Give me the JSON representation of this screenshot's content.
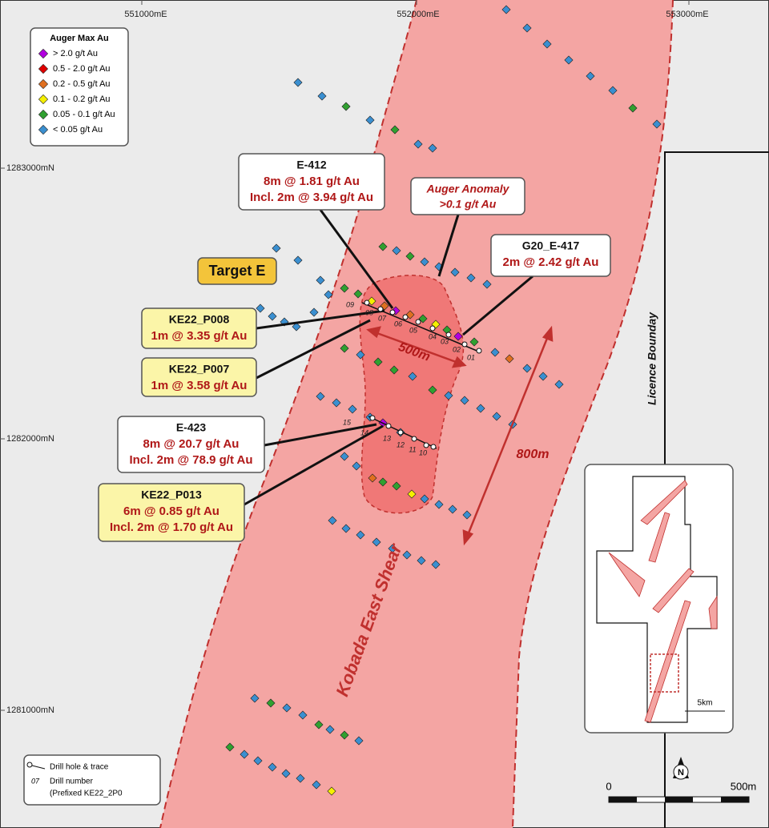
{
  "grid": {
    "eastings": [
      "551000mE",
      "552000mE",
      "553000mE"
    ],
    "northings": [
      "1283000mN",
      "1282000mN",
      "1281000mN"
    ]
  },
  "legend": {
    "title": "Auger Max Au",
    "items": [
      "> 2.0 g/t Au",
      "0.5 - 2.0 g/t Au",
      "0.2 - 0.5 g/t Au",
      "0.1 - 0.2 g/t Au",
      "0.05 - 0.1 g/t Au",
      "< 0.05 g/t Au"
    ]
  },
  "callouts": [
    {
      "title": "E-412",
      "lines": [
        "8m @ 1.81 g/t Au",
        "Incl. 2m @ 3.94 g/t Au"
      ]
    },
    {
      "title": "G20_E-417",
      "lines": [
        "2m @ 2.42 g/t Au"
      ]
    },
    {
      "title": "KE22_P008",
      "lines": [
        "1m @ 3.35 g/t Au"
      ]
    },
    {
      "title": "KE22_P007",
      "lines": [
        "1m @ 3.58 g/t Au"
      ]
    },
    {
      "title": "E-423",
      "lines": [
        "8m @ 20.7 g/t Au",
        "Incl. 2m @ 78.9 g/t Au"
      ]
    },
    {
      "title": "KE22_P013",
      "lines": [
        "6m @ 0.85 g/t Au",
        "Incl. 2m @ 1.70 g/t Au"
      ]
    }
  ],
  "target_label": "Target E",
  "anomaly": {
    "title": "Auger Anomaly",
    "subtitle": ">0.1 g/t Au"
  },
  "dimensions": [
    "500m",
    "800m"
  ],
  "shear_label": "Kobada East Shear",
  "boundary_label": "Licence Bounday",
  "drill_numbers": [
    "01",
    "02",
    "03",
    "04",
    "05",
    "06",
    "07",
    "08",
    "09",
    "10",
    "11",
    "12",
    "13",
    "14",
    "15"
  ],
  "drill_legend": {
    "trace": "Drill hole & trace",
    "number_example": "07",
    "number_label": "Drill number",
    "number_note": "(Prefixed KE22_2P0"
  },
  "scale": {
    "start": "0",
    "end": "500m",
    "inset": "5km"
  },
  "north": "N"
}
